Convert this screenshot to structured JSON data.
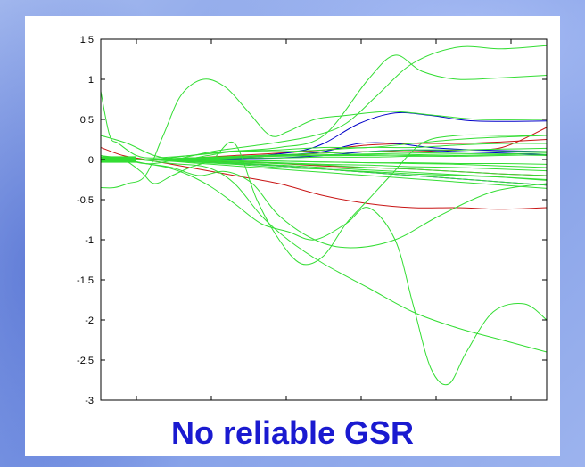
{
  "caption": "No reliable GSR",
  "chart_data": {
    "type": "line",
    "title": "",
    "xlabel": "",
    "ylabel": "",
    "ylim": [
      -3,
      1.5
    ],
    "xlim": [
      0,
      100
    ],
    "x_tick_positions": [
      0,
      20,
      40,
      60,
      80,
      100
    ],
    "x_tick_labels": [
      "",
      "",
      "",
      "",
      "",
      ""
    ],
    "yticks": [
      1.5,
      1,
      0.5,
      0,
      -0.5,
      -1,
      -1.5,
      -2,
      -2.5,
      -3
    ],
    "ytick_labels": [
      "1.5",
      "1",
      "0.5",
      "0",
      "-0.5",
      "-1",
      "-1.5",
      "-2",
      "-2.5",
      "-3"
    ],
    "grid": false,
    "colors": {
      "green": "#33dd33",
      "blue": "#0000c8",
      "red": "#c81414"
    },
    "series": [
      {
        "color": "green",
        "x": [
          0,
          5,
          12,
          25,
          38,
          48,
          55,
          62,
          70,
          80,
          90,
          100
        ],
        "y": [
          0,
          0,
          -0.05,
          0.1,
          0.2,
          0.3,
          0.45,
          0.8,
          1.2,
          1.4,
          1.38,
          1.42
        ]
      },
      {
        "color": "green",
        "x": [
          0,
          5,
          12,
          20,
          28,
          40,
          50,
          60,
          66,
          72,
          80,
          90,
          100
        ],
        "y": [
          0,
          0,
          0,
          0.05,
          0.1,
          0.15,
          0.3,
          1.0,
          1.3,
          1.1,
          1.0,
          1.02,
          1.05
        ]
      },
      {
        "color": "green",
        "x": [
          0,
          3,
          6,
          10,
          14,
          18,
          23,
          28,
          33,
          38,
          42,
          48,
          55,
          65,
          75,
          85,
          100
        ],
        "y": [
          -0.35,
          -0.35,
          -0.3,
          -0.2,
          0.3,
          0.8,
          1.0,
          0.9,
          0.6,
          0.3,
          0.35,
          0.5,
          0.55,
          0.6,
          0.55,
          0.5,
          0.5
        ]
      },
      {
        "color": "green",
        "x": [
          0,
          5,
          9,
          12,
          16,
          20,
          25,
          30,
          35,
          40,
          45,
          50,
          55,
          60,
          65,
          72,
          80,
          90,
          100
        ],
        "y": [
          0.05,
          0,
          -0.15,
          -0.3,
          -0.2,
          -0.1,
          0,
          0.2,
          -0.5,
          -1.0,
          -1.3,
          -1.2,
          -0.8,
          -0.5,
          -0.2,
          0.2,
          0.3,
          0.3,
          0.3
        ]
      },
      {
        "color": "green",
        "x": [
          0,
          5,
          10,
          15,
          20,
          25,
          30,
          36,
          42,
          48,
          55,
          60,
          66,
          70,
          74,
          78,
          82,
          88,
          95,
          100
        ],
        "y": [
          0,
          0,
          -0.05,
          -0.1,
          -0.2,
          -0.35,
          -0.55,
          -0.8,
          -0.9,
          -1.0,
          -0.8,
          -0.6,
          -1.0,
          -1.8,
          -2.6,
          -2.8,
          -2.4,
          -1.9,
          -1.8,
          -2.0
        ]
      },
      {
        "color": "green",
        "x": [
          0,
          8,
          16,
          24,
          30,
          36,
          42,
          50,
          60,
          70,
          80,
          90,
          100
        ],
        "y": [
          0,
          0,
          -0.05,
          -0.1,
          -0.3,
          -0.7,
          -1.0,
          -1.3,
          -1.6,
          -1.9,
          -2.1,
          -2.25,
          -2.4
        ]
      },
      {
        "color": "green",
        "x": [
          0,
          5,
          10,
          16,
          22,
          28,
          34,
          40,
          48,
          56,
          66,
          76,
          88,
          100
        ],
        "y": [
          0,
          0,
          -0.05,
          -0.1,
          -0.2,
          -0.15,
          -0.3,
          -0.7,
          -1.0,
          -1.1,
          -1.0,
          -0.7,
          -0.4,
          -0.3
        ]
      },
      {
        "color": "green",
        "x": [
          0,
          2,
          4,
          8,
          12,
          20,
          30,
          40,
          50,
          60,
          70,
          80,
          90,
          100
        ],
        "y": [
          0.85,
          0.3,
          0.2,
          0.05,
          0.02,
          0.05,
          0.1,
          0.12,
          0.15,
          0.15,
          0.2,
          0.25,
          0.28,
          0.3
        ]
      },
      {
        "color": "green",
        "x": [
          0,
          6,
          12,
          18,
          24,
          30,
          40,
          50,
          60,
          70,
          80,
          90,
          100
        ],
        "y": [
          0.3,
          0.2,
          0.05,
          0,
          0.05,
          0.1,
          0.1,
          0.12,
          0.15,
          0.15,
          0.18,
          0.2,
          0.2
        ]
      },
      {
        "color": "green",
        "x": [
          0,
          10,
          20,
          30,
          40,
          50,
          60,
          70,
          80,
          90,
          100
        ],
        "y": [
          0,
          0,
          0,
          0.02,
          0.05,
          0.05,
          0.06,
          0.05,
          0.05,
          0.06,
          0.05
        ]
      },
      {
        "color": "green",
        "x": [
          0,
          10,
          20,
          30,
          40,
          50,
          60,
          70,
          80,
          90,
          100
        ],
        "y": [
          0,
          0,
          0,
          0,
          -0.02,
          -0.03,
          -0.04,
          -0.05,
          -0.06,
          -0.08,
          -0.1
        ]
      },
      {
        "color": "green",
        "x": [
          0,
          10,
          20,
          30,
          40,
          50,
          60,
          70,
          80,
          90,
          100
        ],
        "y": [
          0,
          0,
          0.02,
          0.04,
          0.06,
          0.08,
          0.1,
          0.12,
          0.12,
          0.13,
          0.14
        ]
      },
      {
        "color": "green",
        "x": [
          0,
          10,
          20,
          30,
          40,
          50,
          60,
          70,
          80,
          90,
          100
        ],
        "y": [
          0,
          0,
          -0.03,
          -0.06,
          -0.1,
          -0.12,
          -0.15,
          -0.18,
          -0.2,
          -0.22,
          -0.25
        ]
      },
      {
        "color": "green",
        "x": [
          0,
          10,
          20,
          30,
          40,
          50,
          60,
          70,
          80,
          90,
          100
        ],
        "y": [
          0,
          0,
          -0.02,
          -0.05,
          -0.08,
          -0.12,
          -0.16,
          -0.2,
          -0.24,
          -0.28,
          -0.32
        ]
      },
      {
        "color": "green",
        "x": [
          0,
          10,
          20,
          30,
          40,
          50,
          60,
          70,
          80,
          90,
          100
        ],
        "y": [
          0,
          0,
          0.01,
          0.02,
          0.02,
          0.03,
          0.03,
          0.04,
          0.04,
          0.05,
          0.06
        ]
      },
      {
        "color": "green",
        "x": [
          0,
          10,
          20,
          30,
          40,
          50,
          60,
          70,
          80,
          90,
          100
        ],
        "y": [
          0,
          0,
          -0.01,
          -0.02,
          -0.04,
          -0.06,
          -0.07,
          -0.09,
          -0.1,
          -0.12,
          -0.14
        ]
      },
      {
        "color": "green",
        "x": [
          0,
          10,
          20,
          30,
          40,
          50,
          60,
          70,
          80,
          90,
          100
        ],
        "y": [
          0,
          0,
          -0.04,
          -0.08,
          -0.12,
          -0.16,
          -0.2,
          -0.24,
          -0.28,
          -0.32,
          -0.36
        ]
      },
      {
        "color": "green",
        "x": [
          0,
          10,
          20,
          30,
          40,
          50,
          60,
          70,
          80,
          90,
          100
        ],
        "y": [
          0,
          0,
          0.02,
          0.03,
          0.05,
          0.06,
          0.07,
          0.08,
          0.09,
          0.1,
          0.1
        ]
      },
      {
        "color": "green",
        "x": [
          0,
          10,
          20,
          30,
          40,
          50,
          60,
          70,
          80,
          90,
          100
        ],
        "y": [
          0,
          0,
          -0.01,
          -0.03,
          -0.05,
          -0.07,
          -0.1,
          -0.12,
          -0.15,
          -0.18,
          -0.2
        ]
      },
      {
        "color": "green",
        "x": [
          0,
          10,
          20,
          30,
          40,
          50,
          60,
          70,
          80,
          90,
          100
        ],
        "y": [
          0,
          0,
          0,
          -0.01,
          -0.02,
          -0.03,
          -0.04,
          -0.04,
          -0.05,
          -0.05,
          -0.06
        ]
      },
      {
        "color": "green",
        "x": [
          0,
          10,
          20,
          30,
          40,
          50,
          60,
          70,
          80,
          90,
          100
        ],
        "y": [
          0,
          0,
          -0.02,
          -0.04,
          -0.07,
          -0.1,
          -0.13,
          -0.16,
          -0.19,
          -0.22,
          -0.26
        ]
      },
      {
        "color": "green",
        "x": [
          0,
          10,
          20,
          30,
          40,
          50,
          60,
          70,
          80,
          90,
          100
        ],
        "y": [
          0,
          0,
          0.01,
          0.03,
          0.04,
          0.05,
          0.05,
          0.06,
          0.07,
          0.07,
          0.08
        ]
      },
      {
        "color": "blue",
        "x": [
          0,
          10,
          20,
          28,
          36,
          44,
          50,
          58,
          66,
          74,
          84,
          100
        ],
        "y": [
          0,
          0,
          0,
          0.02,
          0.05,
          0.1,
          0.2,
          0.45,
          0.58,
          0.55,
          0.48,
          0.48
        ]
      },
      {
        "color": "blue",
        "x": [
          0,
          10,
          20,
          30,
          40,
          50,
          58,
          66,
          74,
          84,
          100
        ],
        "y": [
          0,
          0,
          0,
          0.02,
          0.05,
          0.1,
          0.2,
          0.2,
          0.15,
          0.12,
          0.1
        ]
      },
      {
        "color": "blue",
        "x": [
          0,
          10,
          20,
          30,
          40,
          50,
          60,
          70,
          80,
          90,
          100
        ],
        "y": [
          0,
          0,
          -0.02,
          -0.05,
          -0.08,
          -0.12,
          -0.16,
          -0.2,
          -0.24,
          -0.28,
          -0.32
        ]
      },
      {
        "color": "blue",
        "x": [
          0,
          10,
          20,
          30,
          40,
          50,
          60,
          70,
          80,
          90,
          100
        ],
        "y": [
          0,
          0,
          0,
          0.01,
          0.02,
          0.05,
          0.1,
          0.12,
          0.1,
          0.08,
          0.06
        ]
      },
      {
        "color": "red",
        "x": [
          0,
          5,
          10,
          15,
          20,
          30,
          40,
          50,
          60,
          70,
          80,
          90,
          100
        ],
        "y": [
          0.15,
          0.05,
          0,
          -0.05,
          -0.1,
          -0.2,
          -0.3,
          -0.45,
          -0.55,
          -0.6,
          -0.6,
          -0.62,
          -0.6
        ]
      },
      {
        "color": "red",
        "x": [
          0,
          10,
          20,
          30,
          40,
          50,
          60,
          70,
          80,
          90,
          100
        ],
        "y": [
          0,
          0,
          0.02,
          0.05,
          0.08,
          0.12,
          0.18,
          0.2,
          0.2,
          0.22,
          0.25
        ]
      },
      {
        "color": "red",
        "x": [
          0,
          10,
          20,
          30,
          40,
          50,
          60,
          70,
          80,
          90,
          100
        ],
        "y": [
          0,
          0,
          0.01,
          0.02,
          0.05,
          0.08,
          0.1,
          0.1,
          0.12,
          0.15,
          0.4
        ]
      },
      {
        "color": "red",
        "x": [
          0,
          10,
          20,
          30,
          40,
          50,
          60,
          70,
          80,
          90,
          100
        ],
        "y": [
          0,
          0,
          -0.02,
          -0.03,
          -0.05,
          -0.08,
          -0.1,
          -0.12,
          -0.15,
          -0.18,
          -0.2
        ]
      }
    ]
  }
}
